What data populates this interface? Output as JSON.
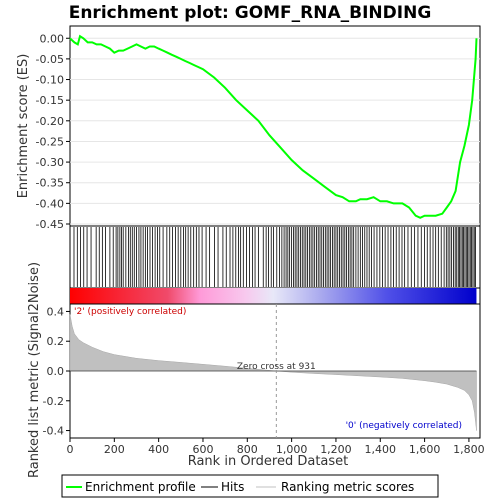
{
  "chart_data": [
    {
      "type": "line",
      "title": "Enrichment plot: GOMF_RNA_BINDING",
      "ylabel": "Enrichment score (ES)",
      "xlim": [
        0,
        1850
      ],
      "ylim": [
        -0.45,
        0.02
      ],
      "yticks": [
        "0.00",
        "-0.05",
        "-0.10",
        "-0.15",
        "-0.20",
        "-0.25",
        "-0.30",
        "-0.35",
        "-0.40",
        "-0.45"
      ],
      "line_color": "#00ff00",
      "series": [
        {
          "name": "Enrichment profile",
          "x": [
            0,
            20,
            35,
            45,
            60,
            80,
            100,
            120,
            140,
            160,
            180,
            200,
            220,
            240,
            260,
            280,
            300,
            320,
            340,
            360,
            380,
            400,
            420,
            440,
            460,
            480,
            500,
            520,
            540,
            560,
            580,
            600,
            650,
            700,
            750,
            800,
            850,
            900,
            950,
            1000,
            1050,
            1100,
            1150,
            1200,
            1230,
            1260,
            1290,
            1310,
            1340,
            1370,
            1400,
            1430,
            1460,
            1500,
            1530,
            1560,
            1580,
            1600,
            1620,
            1650,
            1680,
            1700,
            1720,
            1740,
            1760,
            1780,
            1800,
            1815,
            1830,
            1834
          ],
          "y": [
            0.0,
            -0.01,
            -0.015,
            0.005,
            0.0,
            -0.01,
            -0.01,
            -0.015,
            -0.015,
            -0.02,
            -0.025,
            -0.035,
            -0.03,
            -0.03,
            -0.025,
            -0.02,
            -0.015,
            -0.02,
            -0.025,
            -0.02,
            -0.02,
            -0.025,
            -0.03,
            -0.035,
            -0.04,
            -0.045,
            -0.05,
            -0.055,
            -0.06,
            -0.065,
            -0.07,
            -0.075,
            -0.095,
            -0.12,
            -0.15,
            -0.175,
            -0.2,
            -0.235,
            -0.265,
            -0.295,
            -0.32,
            -0.34,
            -0.36,
            -0.38,
            -0.385,
            -0.395,
            -0.395,
            -0.39,
            -0.39,
            -0.385,
            -0.395,
            -0.395,
            -0.4,
            -0.4,
            -0.41,
            -0.43,
            -0.435,
            -0.43,
            -0.43,
            -0.43,
            -0.425,
            -0.41,
            -0.395,
            -0.37,
            -0.3,
            -0.26,
            -0.21,
            -0.15,
            -0.05,
            0.0
          ]
        }
      ],
      "grid": true
    },
    {
      "type": "bar",
      "name": "Hits",
      "hits": [
        18,
        33,
        47,
        62,
        77,
        95,
        118,
        132,
        146,
        160,
        180,
        195,
        208,
        216,
        225,
        232,
        240,
        252,
        264,
        272,
        281,
        290,
        300,
        311,
        320,
        330,
        340,
        350,
        361,
        372,
        384,
        395,
        405,
        420,
        437,
        450,
        462,
        476,
        488,
        500,
        512,
        522,
        533,
        545,
        558,
        570,
        582,
        596,
        614,
        630,
        652,
        668,
        690,
        705,
        722,
        735,
        748,
        760,
        770,
        782,
        796,
        810,
        824,
        835,
        850,
        872,
        885,
        896,
        908,
        918,
        933,
        945,
        956,
        966,
        975,
        983,
        991,
        1000,
        1008,
        1016,
        1024,
        1032,
        1040,
        1048,
        1056,
        1064,
        1072,
        1080,
        1088,
        1096,
        1104,
        1112,
        1120,
        1128,
        1136,
        1144,
        1152,
        1160,
        1168,
        1176,
        1184,
        1192,
        1200,
        1208,
        1216,
        1224,
        1232,
        1240,
        1248,
        1256,
        1264,
        1272,
        1280,
        1290,
        1300,
        1310,
        1320,
        1330,
        1340,
        1350,
        1360,
        1372,
        1385,
        1398,
        1410,
        1422,
        1435,
        1448,
        1460,
        1472,
        1485,
        1498,
        1510,
        1525,
        1540,
        1555,
        1570,
        1585,
        1600,
        1612,
        1625,
        1638,
        1650,
        1662,
        1675,
        1688,
        1698,
        1706,
        1714,
        1722,
        1730,
        1738,
        1745,
        1752,
        1758,
        1764,
        1770,
        1776,
        1782,
        1788,
        1794,
        1800,
        1806,
        1812,
        1818,
        1824,
        1830
      ]
    },
    {
      "type": "area",
      "ylabel": "Ranked list metric (Signal2Noise)",
      "xlabel": "Rank in Ordered Dataset",
      "xlim": [
        0,
        1850
      ],
      "ylim": [
        -0.45,
        0.45
      ],
      "xticks": [
        "0",
        "200",
        "400",
        "600",
        "800",
        "1,000",
        "1,200",
        "1,400",
        "1,600",
        "1,800"
      ],
      "yticks": [
        "0.4",
        "0.2",
        "0.0",
        "-0.2",
        "-0.4"
      ],
      "series": [
        {
          "name": "Ranking metric scores",
          "x": [
            0,
            10,
            20,
            40,
            60,
            100,
            150,
            200,
            300,
            400,
            500,
            600,
            700,
            800,
            931,
            1000,
            1100,
            1200,
            1300,
            1400,
            1500,
            1600,
            1650,
            1700,
            1750,
            1780,
            1800,
            1815,
            1825,
            1834
          ],
          "y": [
            0.38,
            0.3,
            0.25,
            0.21,
            0.19,
            0.16,
            0.13,
            0.11,
            0.085,
            0.07,
            0.058,
            0.045,
            0.032,
            0.018,
            0.0,
            -0.008,
            -0.017,
            -0.024,
            -0.032,
            -0.04,
            -0.05,
            -0.065,
            -0.075,
            -0.088,
            -0.11,
            -0.13,
            -0.16,
            -0.2,
            -0.28,
            -0.4
          ]
        }
      ],
      "annotations": [
        "Zero cross at 931",
        "'2' (positively correlated)",
        "'0' (negatively correlated)"
      ],
      "zero_cross": 931
    }
  ],
  "legend": {
    "items": [
      {
        "label": "Enrichment profile",
        "color": "#00ff00"
      },
      {
        "label": "Hits",
        "color": "#000000"
      },
      {
        "label": "Ranking metric scores",
        "color": "#c0c0c0"
      }
    ]
  }
}
